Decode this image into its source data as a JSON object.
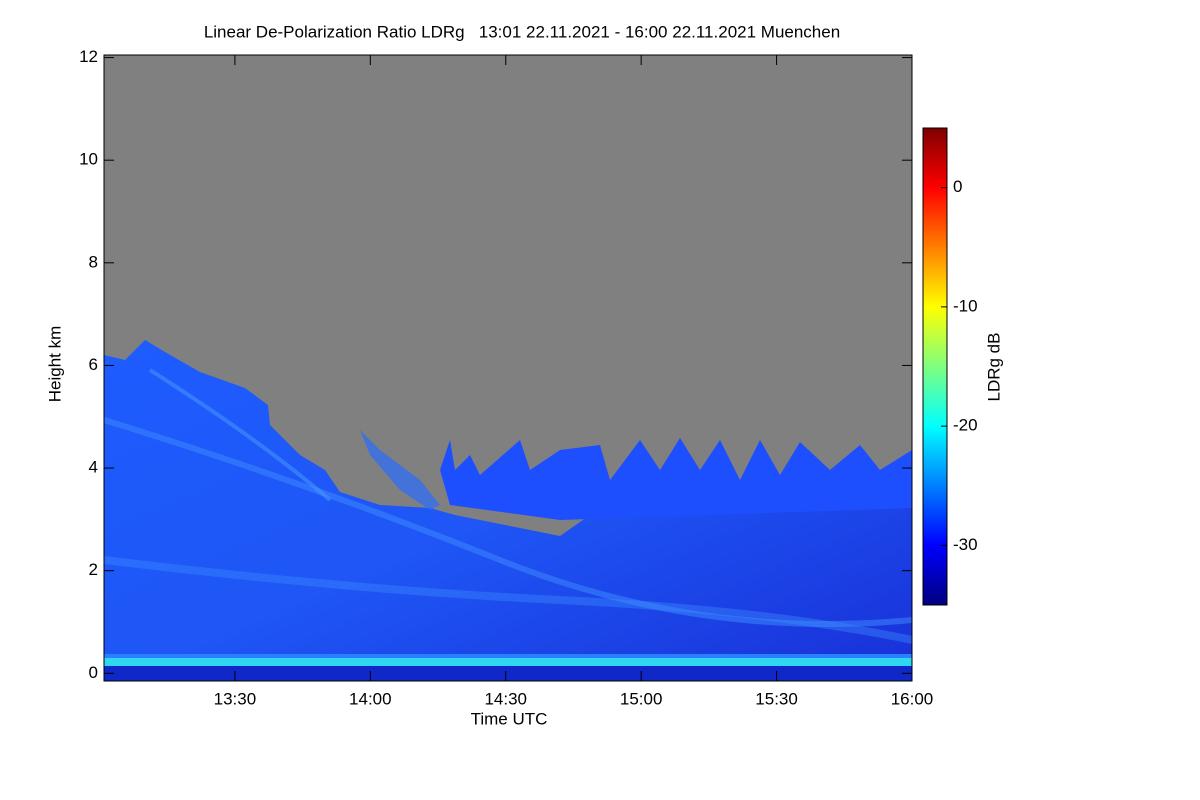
{
  "chart_data": {
    "type": "heatmap",
    "title": "Linear De-Polarization Ratio LDRg   13:01 22.11.2021 - 16:00 22.11.2021 Muenchen",
    "x_label": "Time UTC",
    "y_label": "Height km",
    "colorbar_label": "LDRg dB",
    "xlim": [
      781,
      960
    ],
    "xticks": [
      {
        "value": 810,
        "label": "13:30"
      },
      {
        "value": 840,
        "label": "14:00"
      },
      {
        "value": 870,
        "label": "14:30"
      },
      {
        "value": 900,
        "label": "15:00"
      },
      {
        "value": 930,
        "label": "15:30"
      },
      {
        "value": 960,
        "label": "16:00"
      }
    ],
    "ylim": [
      -0.15,
      12.05
    ],
    "yticks": [
      0,
      2,
      4,
      6,
      8,
      10,
      12
    ],
    "colorbar_lim": [
      -35,
      5
    ],
    "colorbar_ticks": [
      -30,
      -20,
      -10,
      0
    ],
    "colormap": [
      "#00007f",
      "#0000ff",
      "#007fff",
      "#00ffff",
      "#7fff7f",
      "#ffff00",
      "#ff7f00",
      "#ff0000",
      "#7f0000"
    ]
  }
}
